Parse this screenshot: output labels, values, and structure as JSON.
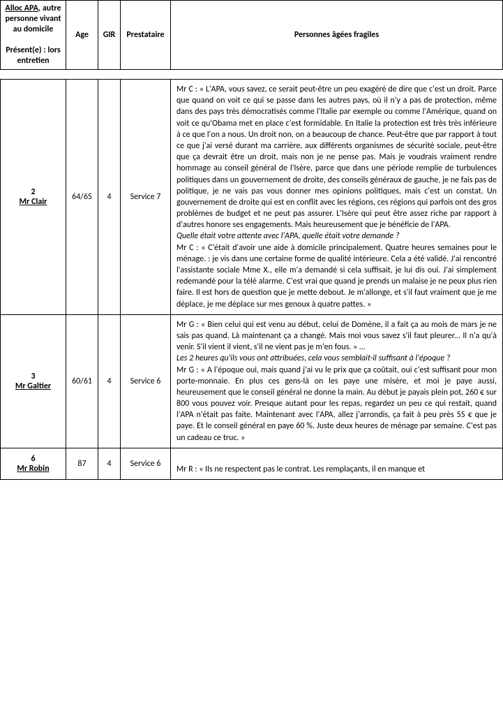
{
  "table": {
    "headers": {
      "col1_line1_underlined": "Alloc APA",
      "col1_line1_rest": ", autre personne vivant au domicile",
      "col1_line2": "Présent(e) : lors entretien",
      "age": "Age",
      "gir": "GIR",
      "prestataire": "Prestataire",
      "paf": "Personnes âgées fragiles"
    },
    "rows": [
      {
        "num": "2",
        "name": "Mr Clair",
        "age": "64/65",
        "gir": "4",
        "prestataire": "Service 7",
        "text_part1": "Mr C : « L'APA, vous savez, ce serait peut-être un peu exagéré de dire que c'est un droit. Parce que quand on voit ce qui se passe dans les autres pays, où il n'y a pas de protection, même dans des pays très démocratisés comme l'Italie par exemple ou comme l'Amérique, quand on voit ce qu'Obama met en place c'est formidable. En Italie la protection est très très inférieure à ce que l'on a nous. Un droit non, on a beaucoup de chance. Peut-être que par rapport à tout ce que j'ai versé durant ma carrière, aux différents organismes de sécurité sociale, peut-être que ça devrait être un droit, mais non je ne pense pas. Mais je voudrais vraiment rendre hommage au conseil général de l'Isère, parce que dans une période remplie de turbulences politiques dans un gouvernement de droite, des conseils généraux de gauche, je ne fais pas de politique, je ne vais pas vous donner mes opinions politiques, mais c'est un constat. Un gouvernement de droite qui est en conflit avec les régions, ces régions qui parfois ont des gros problèmes de budget et ne peut pas assurer. L'Isère qui peut être assez riche par rapport à d'autres honore ses engagements. Mais heureusement que je bénéficie de l'APA.",
        "prompt1": "Quelle était votre attente avec l'APA, quelle était votre demande ?",
        "text_part2": "Mr C : « C'était d'avoir une aide à domicile principalement. Quatre heures semaines pour le ménage. : je vis dans une certaine forme de qualité intérieure. Cela a été validé. J'ai rencontré l'assistante sociale Mme X., elle m'a demandé si cela suffisait, je lui dis oui. J'ai simplement redemandé pour la télé alarme. C'est vrai que quand je prends un malaise je ne peux plus rien faire. Il est hors de question que je mette debout. Je m'allonge, et s'il faut vraiment que je me déplace, je me déplace sur mes genoux à quatre pattes. »"
      },
      {
        "num": "3",
        "name": "Mr Galtier",
        "age": "60/61",
        "gir": "4",
        "prestataire": "Service 6",
        "text_part1": "Mr G : « Bien celui qui est venu au début, celui de Domène, il a fait ça au mois de mars je ne sais pas quand. Là maintenant ça a changé. Mais moi vous savez s'il faut pleurer... Il n'a qu'à venir. S'il vient il vient, s'il ne vient pas je m'en fous. » …",
        "prompt1": "Les 2 heures qu'ils vous ont attribuées, cela vous semblait-il suffisant à l'époque ?",
        "text_part2": "Mr G : « A l'époque oui, mais quand j'ai vu le prix que ça coûtait, oui c'est suffisant pour mon porte-monnaie. En plus ces gens-là on les paye une misère, et moi je paye aussi, heureusement que le conseil général ne donne la main. Au début je payais plein pot, 260 € sur 800 vous pouvez voir. Presque autant pour les repas, regardez un peu ce qui restait, quand l'APA n'était pas faite. Maintenant avec l'APA, allez j'arrondis, ça fait à peu près 55 € que je paye. Et le conseil général en paye 60 %. Juste deux heures de ménage par semaine. C'est pas un cadeau ce truc. »"
      },
      {
        "num": "6",
        "name": "Mr Robin",
        "age": "87",
        "gir": "4",
        "prestataire": "Service 6",
        "text_part1": "Mr R : « Ils ne respectent pas le contrat. Les remplaçants, il en manque et"
      }
    ]
  }
}
